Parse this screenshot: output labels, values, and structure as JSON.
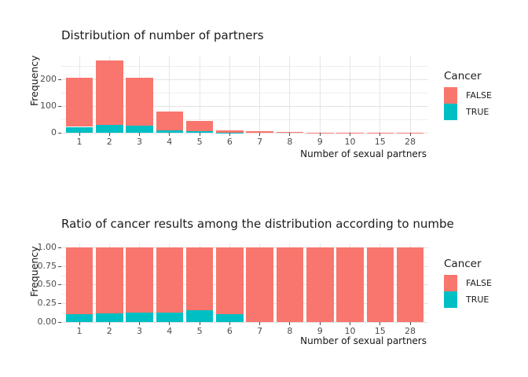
{
  "legend": {
    "title": "Cancer",
    "items": [
      {
        "label": "FALSE",
        "color": "#F8766D"
      },
      {
        "label": "TRUE",
        "color": "#00BFC4"
      }
    ]
  },
  "chart_data": [
    {
      "type": "bar",
      "stacked": true,
      "title": "Distribution of number of partners",
      "xlabel": "Number of sexual partners",
      "ylabel": "Frequency",
      "categories": [
        "1",
        "2",
        "3",
        "4",
        "5",
        "6",
        "7",
        "8",
        "9",
        "10",
        "15",
        "28"
      ],
      "series": [
        {
          "name": "TRUE",
          "color": "#00BFC4",
          "values": [
            22,
            30,
            26,
            10,
            7,
            1,
            0,
            0,
            0,
            0,
            0,
            0
          ]
        },
        {
          "name": "FALSE",
          "color": "#F8766D",
          "values": [
            183,
            240,
            181,
            68,
            37,
            9,
            5,
            3,
            1,
            1,
            1,
            1
          ]
        }
      ],
      "totals": [
        205,
        270,
        207,
        78,
        44,
        10,
        5,
        3,
        1,
        1,
        1,
        1
      ],
      "ylim": [
        0,
        285
      ],
      "yticks": [
        {
          "value": 0,
          "label": "0"
        },
        {
          "value": 100,
          "label": "100"
        },
        {
          "value": 200,
          "label": "200"
        }
      ],
      "minor_gridlines": [
        50,
        150,
        250
      ],
      "grid": true,
      "legend_position": "right",
      "legend_title": "Cancer"
    },
    {
      "type": "bar",
      "stacked": true,
      "title": "Ratio of cancer results among the distribution according to numbe",
      "xlabel": "Number of sexual partners",
      "ylabel": "Frequency",
      "categories": [
        "1",
        "2",
        "3",
        "4",
        "5",
        "6",
        "7",
        "8",
        "9",
        "10",
        "15",
        "28"
      ],
      "series": [
        {
          "name": "TRUE",
          "color": "#00BFC4",
          "values": [
            0.107,
            0.111,
            0.126,
            0.128,
            0.159,
            0.1,
            0,
            0,
            0,
            0,
            0,
            0
          ]
        },
        {
          "name": "FALSE",
          "color": "#F8766D",
          "values": [
            0.893,
            0.889,
            0.874,
            0.872,
            0.841,
            0.9,
            1,
            1,
            1,
            1,
            1,
            1
          ]
        }
      ],
      "ylim": [
        0,
        1.05
      ],
      "yticks": [
        {
          "value": 0.0,
          "label": "0.00"
        },
        {
          "value": 0.25,
          "label": "0.25"
        },
        {
          "value": 0.5,
          "label": "0.50"
        },
        {
          "value": 0.75,
          "label": "0.75"
        },
        {
          "value": 1.0,
          "label": "1.00"
        }
      ],
      "minor_gridlines": [
        0.125,
        0.375,
        0.625,
        0.875
      ],
      "grid": true,
      "legend_position": "right",
      "legend_title": "Cancer"
    }
  ]
}
